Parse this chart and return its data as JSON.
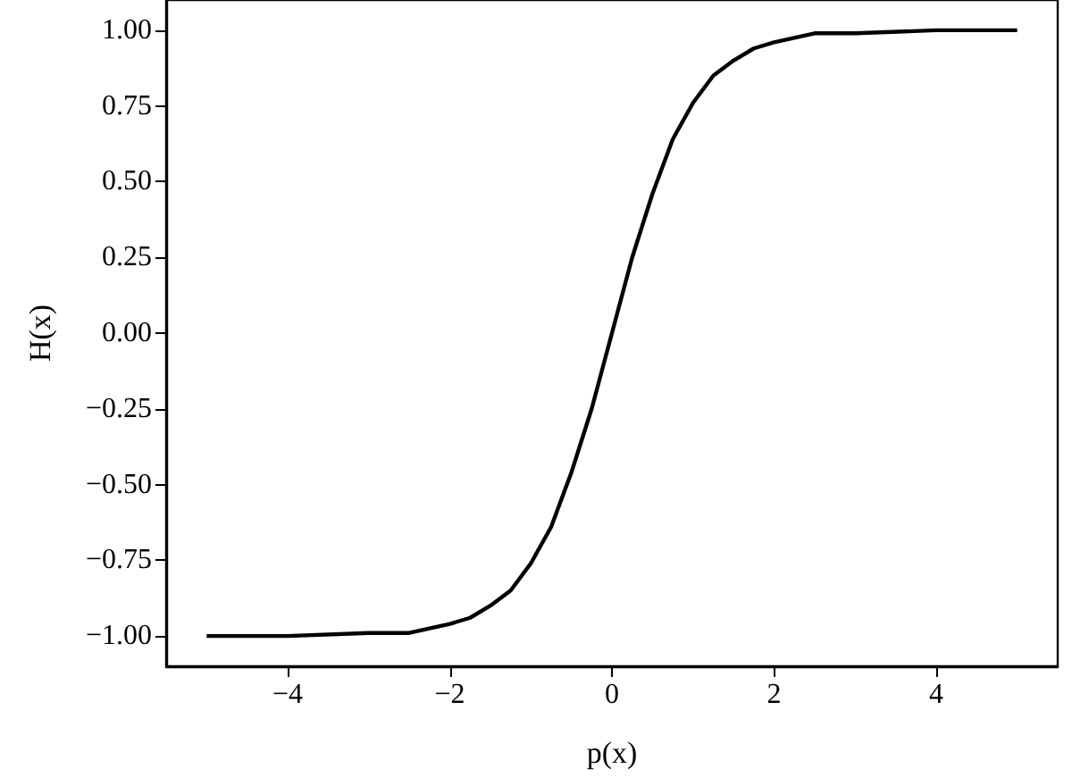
{
  "chart_data": {
    "type": "line",
    "xlabel": "p(x)",
    "ylabel": "H(x)",
    "x": [
      -5,
      -4,
      -3,
      -2.5,
      -2,
      -1.75,
      -1.5,
      -1.25,
      -1,
      -0.75,
      -0.5,
      -0.25,
      0,
      0.25,
      0.5,
      0.75,
      1,
      1.25,
      1.5,
      1.75,
      2,
      2.5,
      3,
      4,
      5
    ],
    "series": [
      {
        "color": "#000000",
        "values": [
          -1.0,
          -1.0,
          -0.99,
          -0.99,
          -0.96,
          -0.94,
          -0.9,
          -0.85,
          -0.76,
          -0.64,
          -0.46,
          -0.25,
          0,
          0.25,
          0.46,
          0.64,
          0.76,
          0.85,
          0.9,
          0.94,
          0.96,
          0.99,
          0.99,
          1.0,
          1.0
        ]
      }
    ],
    "xlim": [
      -5.5,
      5.5
    ],
    "xticks": [
      -4,
      -2,
      0,
      2,
      4
    ],
    "ylim": [
      -1.1,
      1.1
    ],
    "yticks": [
      {
        "value": -1,
        "label": "−1.00"
      },
      {
        "value": -0.75,
        "label": "−0.75"
      },
      {
        "value": -0.5,
        "label": "−0.50"
      },
      {
        "value": -0.25,
        "label": "−0.25"
      },
      {
        "value": 0,
        "label": "0.00"
      },
      {
        "value": 0.25,
        "label": "0.25"
      },
      {
        "value": 0.5,
        "label": "0.50"
      },
      {
        "value": 0.75,
        "label": "0.75"
      },
      {
        "value": 1,
        "label": "1.00"
      }
    ],
    "grid": false,
    "marker": "none",
    "line_style": "solid"
  }
}
